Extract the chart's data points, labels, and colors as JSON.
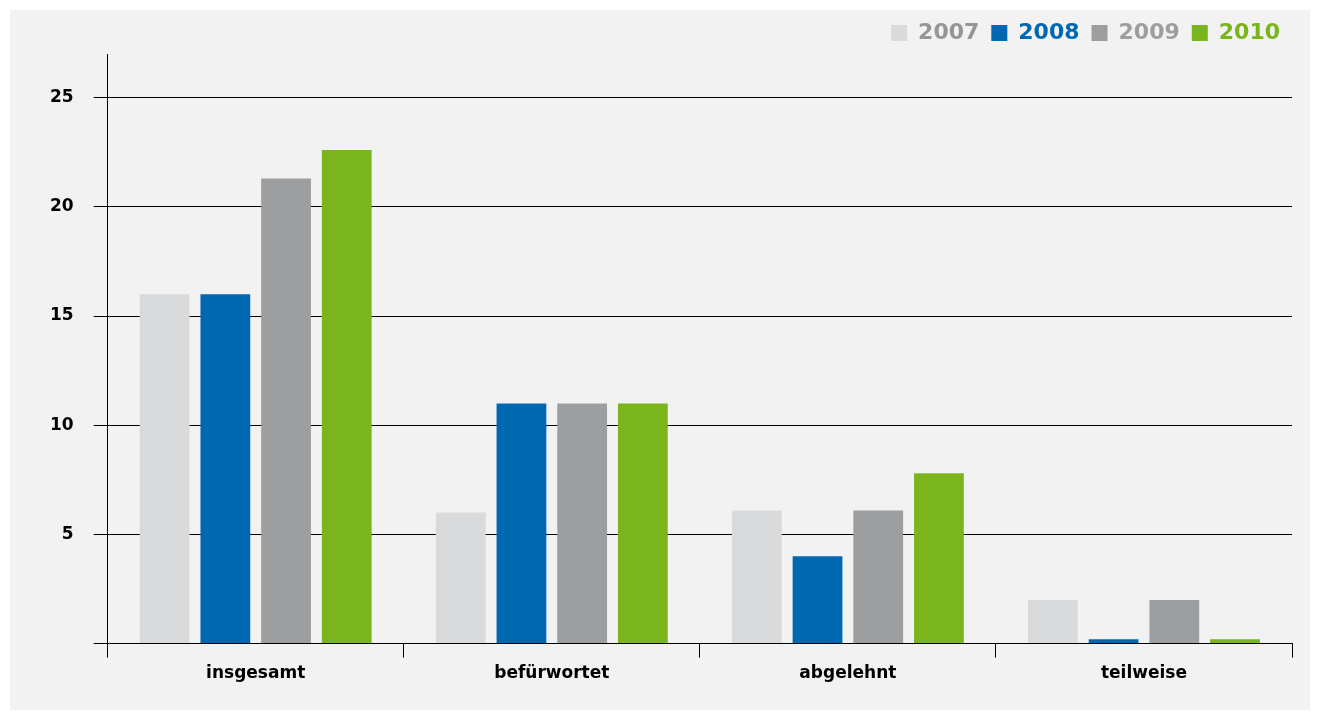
{
  "chart_data": {
    "type": "bar",
    "categories": [
      "insgesamt",
      "befürwortet",
      "abgelehnt",
      "teilweise"
    ],
    "series": [
      {
        "name": "2007",
        "color": "#d9dadb",
        "values": [
          16,
          6,
          6.1,
          2
        ]
      },
      {
        "name": "2008",
        "color": "#0068b0",
        "values": [
          16,
          11,
          4,
          0.2
        ]
      },
      {
        "name": "2009",
        "color": "#9d9ea0",
        "values": [
          21.3,
          11,
          6.1,
          2
        ]
      },
      {
        "name": "2010",
        "color": "#7ab51d",
        "values": [
          22.6,
          11,
          7.8,
          0.2
        ]
      }
    ],
    "ylim": [
      0,
      27
    ],
    "yticks": [
      {
        "value": 0,
        "label": null
      },
      5,
      10,
      15,
      20,
      25
    ],
    "grid": "y",
    "legend": "top right"
  }
}
